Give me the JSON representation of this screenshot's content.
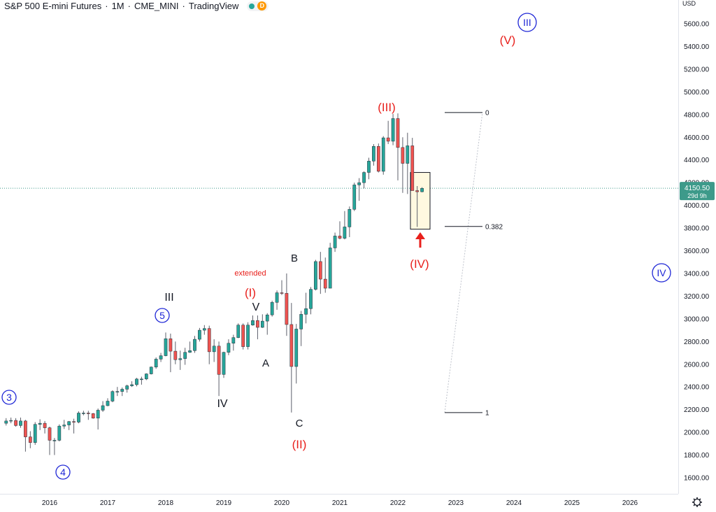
{
  "header": {
    "symbol": "S&P 500 E-mini Futures",
    "interval": "1M",
    "exchange": "CME_MINI",
    "source": "TradingView",
    "status_letter": "D"
  },
  "price_scale": {
    "currency": "USD",
    "ticks": [
      "5600.00",
      "5400.00",
      "5200.00",
      "5000.00",
      "4800.00",
      "4600.00",
      "4400.00",
      "4200.00",
      "4000.00",
      "3800.00",
      "3600.00",
      "3400.00",
      "3200.00",
      "3000.00",
      "2800.00",
      "2600.00",
      "2400.00",
      "2200.00",
      "2000.00",
      "1800.00",
      "1600.00"
    ],
    "last_price": "4150.50",
    "countdown": "29d 9h"
  },
  "time_scale": {
    "ticks": [
      "2016",
      "2017",
      "2018",
      "2019",
      "2020",
      "2021",
      "2022",
      "2023",
      "2024",
      "2025",
      "2026"
    ]
  },
  "fibonacci": {
    "levels": [
      {
        "label": "0",
        "price": 4818
      },
      {
        "label": "0.382",
        "price": 3814
      },
      {
        "label": "1",
        "price": 2174
      }
    ]
  },
  "annotations": {
    "black": [
      "III",
      "V",
      "A",
      "B",
      "IV",
      "C"
    ],
    "red": [
      "(I)",
      "(II)",
      "(III)",
      "(IV)",
      "(V)"
    ],
    "circled_blue": [
      "3",
      "4",
      "5",
      "III",
      "IV"
    ],
    "extended": "extended"
  },
  "colors": {
    "up": "#26a69a",
    "down": "#ef5350",
    "wave_blue": "#1e26d6",
    "wave_red": "#e8201c",
    "highlight_fill": "#fff9e0",
    "price_tag": "#3d9a8a"
  },
  "chart_data": {
    "type": "candlestick",
    "x_axis": {
      "ticks": [
        "2016",
        "2017",
        "2018",
        "2019",
        "2020",
        "2021",
        "2022",
        "2023",
        "2024",
        "2025",
        "2026"
      ]
    },
    "y_axis": {
      "range": [
        1500,
        5750
      ],
      "unit": "USD"
    },
    "last_price": 4150.5,
    "candles": [
      [
        "2015-04",
        2080,
        2125,
        2060,
        2100
      ],
      [
        "2015-05",
        2100,
        2130,
        2080,
        2105
      ],
      [
        "2015-06",
        2105,
        2125,
        2050,
        2060
      ],
      [
        "2015-07",
        2060,
        2130,
        2040,
        2100
      ],
      [
        "2015-08",
        2100,
        2110,
        1830,
        1960
      ],
      [
        "2015-09",
        1960,
        2010,
        1860,
        1910
      ],
      [
        "2015-10",
        1910,
        2090,
        1890,
        2070
      ],
      [
        "2015-11",
        2070,
        2115,
        2020,
        2080
      ],
      [
        "2015-12",
        2080,
        2100,
        1990,
        2040
      ],
      [
        "2016-01",
        2040,
        2050,
        1800,
        1930
      ],
      [
        "2016-02",
        1930,
        1950,
        1800,
        1930
      ],
      [
        "2016-03",
        1930,
        2070,
        1920,
        2055
      ],
      [
        "2016-04",
        2055,
        2110,
        2030,
        2065
      ],
      [
        "2016-05",
        2065,
        2100,
        2020,
        2095
      ],
      [
        "2016-06",
        2095,
        2120,
        1990,
        2090
      ],
      [
        "2016-07",
        2090,
        2185,
        2080,
        2170
      ],
      [
        "2016-08",
        2170,
        2190,
        2150,
        2170
      ],
      [
        "2016-09",
        2170,
        2190,
        2110,
        2165
      ],
      [
        "2016-10",
        2165,
        2170,
        2120,
        2125
      ],
      [
        "2016-11",
        2125,
        2210,
        2025,
        2195
      ],
      [
        "2016-12",
        2195,
        2275,
        2180,
        2235
      ],
      [
        "2017-01",
        2235,
        2300,
        2230,
        2275
      ],
      [
        "2017-02",
        2275,
        2370,
        2265,
        2360
      ],
      [
        "2017-03",
        2360,
        2400,
        2320,
        2360
      ],
      [
        "2017-04",
        2360,
        2395,
        2320,
        2380
      ],
      [
        "2017-05",
        2380,
        2420,
        2350,
        2410
      ],
      [
        "2017-06",
        2410,
        2450,
        2400,
        2420
      ],
      [
        "2017-07",
        2420,
        2480,
        2405,
        2470
      ],
      [
        "2017-08",
        2470,
        2490,
        2420,
        2470
      ],
      [
        "2017-09",
        2470,
        2520,
        2460,
        2515
      ],
      [
        "2017-10",
        2515,
        2580,
        2510,
        2575
      ],
      [
        "2017-11",
        2575,
        2660,
        2560,
        2645
      ],
      [
        "2017-12",
        2645,
        2700,
        2620,
        2675
      ],
      [
        "2018-01",
        2675,
        2880,
        2670,
        2825
      ],
      [
        "2018-02",
        2825,
        2870,
        2530,
        2715
      ],
      [
        "2018-03",
        2715,
        2800,
        2600,
        2640
      ],
      [
        "2018-04",
        2640,
        2720,
        2550,
        2650
      ],
      [
        "2018-05",
        2650,
        2745,
        2595,
        2705
      ],
      [
        "2018-06",
        2705,
        2800,
        2700,
        2720
      ],
      [
        "2018-07",
        2720,
        2850,
        2700,
        2820
      ],
      [
        "2018-08",
        2820,
        2920,
        2800,
        2900
      ],
      [
        "2018-09",
        2900,
        2945,
        2860,
        2915
      ],
      [
        "2018-10",
        2915,
        2940,
        2600,
        2710
      ],
      [
        "2018-11",
        2710,
        2820,
        2620,
        2760
      ],
      [
        "2018-12",
        2760,
        2800,
        2320,
        2510
      ],
      [
        "2019-01",
        2510,
        2710,
        2480,
        2705
      ],
      [
        "2019-02",
        2705,
        2820,
        2680,
        2785
      ],
      [
        "2019-03",
        2785,
        2860,
        2720,
        2835
      ],
      [
        "2019-04",
        2835,
        2960,
        2830,
        2945
      ],
      [
        "2019-05",
        2945,
        2960,
        2730,
        2755
      ],
      [
        "2019-06",
        2755,
        2970,
        2730,
        2945
      ],
      [
        "2019-07",
        2945,
        3030,
        2940,
        2985
      ],
      [
        "2019-08",
        2985,
        3030,
        2820,
        2925
      ],
      [
        "2019-09",
        2925,
        3040,
        2920,
        2980
      ],
      [
        "2019-10",
        2980,
        3050,
        2860,
        3035
      ],
      [
        "2019-11",
        3035,
        3160,
        3020,
        3145
      ],
      [
        "2019-12",
        3145,
        3250,
        3080,
        3230
      ],
      [
        "2020-01",
        3230,
        3340,
        3210,
        3225
      ],
      [
        "2020-02",
        3225,
        3400,
        2850,
        2950
      ],
      [
        "2020-03",
        2950,
        3140,
        2175,
        2580
      ],
      [
        "2020-04",
        2580,
        2955,
        2430,
        2910
      ],
      [
        "2020-05",
        2910,
        3070,
        2760,
        3040
      ],
      [
        "2020-06",
        3040,
        3230,
        2960,
        3090
      ],
      [
        "2020-07",
        3090,
        3280,
        3040,
        3260
      ],
      [
        "2020-08",
        3260,
        3520,
        3250,
        3505
      ],
      [
        "2020-09",
        3505,
        3590,
        3220,
        3350
      ],
      [
        "2020-10",
        3350,
        3540,
        3230,
        3270
      ],
      [
        "2020-11",
        3270,
        3670,
        3270,
        3625
      ],
      [
        "2020-12",
        3625,
        3760,
        3590,
        3730
      ],
      [
        "2021-01",
        3730,
        3860,
        3700,
        3710
      ],
      [
        "2021-02",
        3710,
        3950,
        3700,
        3810
      ],
      [
        "2021-03",
        3810,
        3990,
        3720,
        3965
      ],
      [
        "2021-04",
        3965,
        4200,
        3950,
        4180
      ],
      [
        "2021-05",
        4180,
        4240,
        4040,
        4200
      ],
      [
        "2021-06",
        4200,
        4300,
        4150,
        4290
      ],
      [
        "2021-07",
        4290,
        4420,
        4230,
        4390
      ],
      [
        "2021-08",
        4390,
        4540,
        4350,
        4520
      ],
      [
        "2021-09",
        4520,
        4545,
        4290,
        4300
      ],
      [
        "2021-10",
        4300,
        4610,
        4270,
        4595
      ],
      [
        "2021-11",
        4595,
        4745,
        4540,
        4565
      ],
      [
        "2021-12",
        4565,
        4805,
        4530,
        4765
      ],
      [
        "2022-01",
        4765,
        4810,
        4220,
        4510
      ],
      [
        "2022-02",
        4510,
        4600,
        4110,
        4370
      ],
      [
        "2022-03",
        4370,
        4640,
        4100,
        4525
      ],
      [
        "2022-04",
        4525,
        4595,
        4130,
        4130
      ],
      [
        "2022-05",
        4130,
        4170,
        3810,
        4120
      ],
      [
        "2022-06",
        4120,
        4160,
        4115,
        4150
      ]
    ],
    "fibonacci_retracement": [
      {
        "level": "0",
        "price": 4818
      },
      {
        "level": "0.382",
        "price": 3814
      },
      {
        "level": "1",
        "price": 2174
      }
    ]
  }
}
